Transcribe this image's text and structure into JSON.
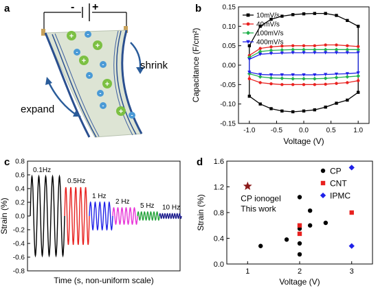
{
  "panels": {
    "a": {
      "letter": "a",
      "battery": {
        "minus": "-",
        "plus": "+"
      },
      "labels": {
        "shrink": "shrink",
        "expand": "expand"
      },
      "ions": {
        "cation_symbol": "+",
        "anion_symbol": "-",
        "cation_color": "#7cc043",
        "anion_color": "#4a9ad6"
      }
    },
    "b": {
      "letter": "b"
    },
    "c": {
      "letter": "c"
    },
    "d": {
      "letter": "d"
    }
  },
  "chart_data": [
    {
      "panel": "b",
      "type": "line",
      "xlabel": "Voltage (V)",
      "ylabel": "Capacitance (F/cm²)",
      "xlim": [
        -1.2,
        1.2
      ],
      "ylim": [
        -0.15,
        0.15
      ],
      "xticks": [
        -1.0,
        -0.5,
        0.0,
        0.5,
        1.0
      ],
      "xtick_labels": [
        "-1.0",
        "-0.5",
        "0.0",
        "0.5",
        "1.0"
      ],
      "yticks": [
        -0.15,
        -0.1,
        -0.05,
        0.0,
        0.05,
        0.1,
        0.15
      ],
      "ytick_labels": [
        "-0.15",
        "-0.10",
        "-0.05",
        "0.00",
        "0.05",
        "0.10",
        "0.15"
      ],
      "legend_position": "top-left",
      "x": [
        -1.0,
        -0.8,
        -0.6,
        -0.4,
        -0.2,
        0.0,
        0.2,
        0.4,
        0.6,
        0.8,
        1.0
      ],
      "series": [
        {
          "name": "10mV/s",
          "color": "#000000",
          "marker": "square",
          "upper": [
            0.05,
            0.1,
            0.118,
            0.126,
            0.13,
            0.132,
            0.133,
            0.133,
            0.128,
            0.115,
            0.1
          ],
          "lower": [
            -0.08,
            -0.1,
            -0.112,
            -0.118,
            -0.12,
            -0.118,
            -0.115,
            -0.108,
            -0.098,
            -0.09,
            -0.07
          ]
        },
        {
          "name": "40mV/s",
          "color": "#e8211f",
          "marker": "circle",
          "upper": [
            0.025,
            0.043,
            0.047,
            0.049,
            0.05,
            0.05,
            0.05,
            0.052,
            0.052,
            0.05,
            0.048
          ],
          "lower": [
            -0.035,
            -0.045,
            -0.048,
            -0.05,
            -0.05,
            -0.05,
            -0.05,
            -0.049,
            -0.047,
            -0.045,
            -0.04
          ]
        },
        {
          "name": "100mV/s",
          "color": "#23b14d",
          "marker": "diamond",
          "upper": [
            0.02,
            0.035,
            0.038,
            0.039,
            0.04,
            0.04,
            0.04,
            0.04,
            0.04,
            0.04,
            0.04
          ],
          "lower": [
            -0.022,
            -0.03,
            -0.033,
            -0.034,
            -0.035,
            -0.035,
            -0.035,
            -0.034,
            -0.032,
            -0.03,
            -0.028
          ]
        },
        {
          "name": "400mV/s",
          "color": "#1f21e8",
          "marker": "triangle-down",
          "upper": [
            0.015,
            0.028,
            0.03,
            0.031,
            0.032,
            0.032,
            0.032,
            0.032,
            0.032,
            0.032,
            0.032
          ],
          "lower": [
            -0.018,
            -0.024,
            -0.025,
            -0.025,
            -0.025,
            -0.025,
            -0.025,
            -0.024,
            -0.023,
            -0.022,
            -0.02
          ]
        }
      ]
    },
    {
      "panel": "c",
      "type": "line",
      "xlabel": "Time (s, non-uniform scale)",
      "ylabel": "Strain (%)",
      "ylim": [
        -0.8,
        0.8
      ],
      "yticks": [
        -0.8,
        -0.6,
        -0.4,
        -0.2,
        0.0,
        0.2,
        0.4,
        0.6,
        0.8
      ],
      "ytick_labels": [
        "-0.8",
        "-0.6",
        "-0.4",
        "-0.2",
        "0.0",
        "0.2",
        "0.4",
        "0.6",
        "0.8"
      ],
      "series": [
        {
          "name": "0.1Hz",
          "color": "#000000",
          "amplitude": 0.58,
          "cycles": 5
        },
        {
          "name": "0.5Hz",
          "color": "#e8211f",
          "amplitude": 0.42,
          "cycles": 5
        },
        {
          "name": "1 Hz",
          "color": "#1f21e8",
          "amplitude": 0.2,
          "cycles": 5
        },
        {
          "name": "2 Hz",
          "color": "#e832d8",
          "amplitude": 0.12,
          "cycles": 6
        },
        {
          "name": "5 Hz",
          "color": "#23a23a",
          "amplitude": 0.06,
          "cycles": 7
        },
        {
          "name": "10 Hz",
          "color": "#1a1a8c",
          "amplitude": 0.035,
          "cycles": 9
        }
      ]
    },
    {
      "panel": "d",
      "type": "scatter",
      "xlabel": "Voltage (V)",
      "ylabel": "Strain (%)",
      "xlim": [
        0.6,
        3.4
      ],
      "ylim": [
        0.0,
        1.6
      ],
      "xticks": [
        1,
        2,
        3
      ],
      "xtick_labels": [
        "1",
        "2",
        "3"
      ],
      "yticks": [
        0.0,
        0.4,
        0.8,
        1.2,
        1.6
      ],
      "ytick_labels": [
        "0.0",
        "0.4",
        "0.8",
        "1.2",
        "1.6"
      ],
      "legend_position": "top-right",
      "series": [
        {
          "name": "CP",
          "color": "#000000",
          "marker": "circle",
          "points": [
            [
              1.25,
              0.28
            ],
            [
              1.75,
              0.38
            ],
            [
              2.0,
              0.15
            ],
            [
              2.0,
              0.32
            ],
            [
              2.0,
              0.55
            ],
            [
              2.0,
              1.04
            ],
            [
              2.2,
              0.6
            ],
            [
              2.2,
              0.83
            ],
            [
              2.5,
              0.64
            ]
          ]
        },
        {
          "name": "CNT",
          "color": "#e8211f",
          "marker": "square",
          "points": [
            [
              2.0,
              0.6
            ],
            [
              2.0,
              0.47
            ],
            [
              3.0,
              0.8
            ]
          ]
        },
        {
          "name": "IPMC",
          "color": "#1f21e8",
          "marker": "diamond",
          "points": [
            [
              3.0,
              1.5
            ],
            [
              3.0,
              0.28
            ]
          ]
        },
        {
          "name": "CP ionogel",
          "color": "#8b1a1a",
          "marker": "star",
          "points": [
            [
              1.0,
              1.21
            ]
          ]
        }
      ],
      "annotation": {
        "line1": "CP ionogel",
        "line2": "This work"
      }
    }
  ]
}
